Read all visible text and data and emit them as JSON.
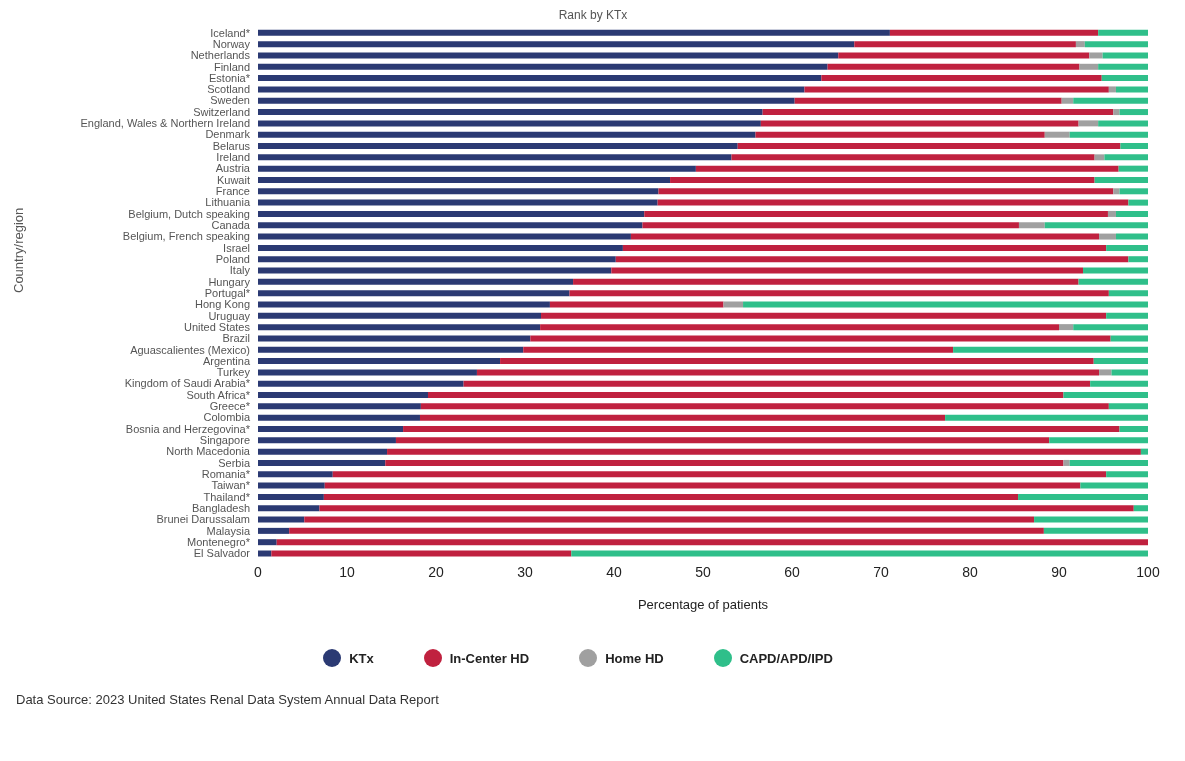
{
  "chart_data": {
    "type": "bar",
    "orientation": "horizontal",
    "stacked": true,
    "title": "Rank by KTx",
    "xlabel": "Percentage of patients",
    "ylabel": "Country/region",
    "legend": "bottom",
    "xlim": [
      0,
      100
    ],
    "xticks": [
      0,
      10,
      20,
      30,
      40,
      50,
      60,
      70,
      80,
      90,
      100
    ],
    "categories": [
      "Iceland*",
      "Norway",
      "Netherlands",
      "Finland",
      "Estonia*",
      "Scotland",
      "Sweden",
      "Switzerland",
      "England, Wales & Northern Ireland",
      "Denmark",
      "Belarus",
      "Ireland",
      "Austria",
      "Kuwait",
      "France",
      "Lithuania",
      "Belgium, Dutch speaking",
      "Canada",
      "Belgium, French speaking",
      "Israel",
      "Poland",
      "Italy",
      "Hungary",
      "Portugal*",
      "Hong Kong",
      "Uruguay",
      "United States",
      "Brazil",
      "Aguascalientes (Mexico)",
      "Argentina",
      "Turkey",
      "Kingdom of Saudi Arabia*",
      "South Africa*",
      "Greece*",
      "Colombia",
      "Bosnia and Herzegovina*",
      "Singapore",
      "North Macedonia",
      "Serbia",
      "Romania*",
      "Taiwan*",
      "Thailand*",
      "Bangladesh",
      "Brunei Darussalam",
      "Malaysia",
      "Montenegro*",
      "El Salvador"
    ],
    "series": [
      {
        "name": "KTx",
        "color": "#2b3a73",
        "values": [
          71,
          67,
          65.2,
          64,
          63.3,
          61.4,
          60.3,
          56.7,
          56.5,
          55.9,
          53.9,
          53.2,
          49.2,
          46.3,
          45,
          44.9,
          43.4,
          43.2,
          41.9,
          41,
          40.2,
          39.7,
          35.4,
          35,
          32.8,
          31.8,
          31.7,
          30.6,
          29.8,
          27.2,
          24.6,
          23.1,
          19.1,
          18.3,
          18.2,
          16.3,
          15.5,
          14.5,
          14.3,
          8.4,
          7.5,
          7.4,
          6.9,
          5.2,
          3.5,
          2.1,
          1.5
        ]
      },
      {
        "name": "In-Center HD",
        "color": "#c0213f",
        "values": [
          23.4,
          24.9,
          28.2,
          28.3,
          31.5,
          34.2,
          30,
          39.4,
          35.7,
          32.5,
          43,
          40.8,
          47.5,
          47.7,
          51.1,
          52.9,
          52.1,
          42.3,
          52.6,
          54.3,
          57.6,
          53,
          56.8,
          60.6,
          19.5,
          63.5,
          58.3,
          65.2,
          48.3,
          66.7,
          69.9,
          70.4,
          71.4,
          77.3,
          59,
          80.5,
          73.4,
          84.7,
          76.2,
          86.9,
          84.9,
          78,
          91.5,
          82,
          84.8,
          97.9,
          33.7
        ]
      },
      {
        "name": "Home HD",
        "color": "#a0a0a0",
        "values": [
          0,
          1,
          1.5,
          2.1,
          0,
          0.8,
          1.3,
          0.7,
          2.2,
          2.8,
          0,
          1.1,
          0,
          0,
          0.7,
          0,
          0.9,
          2.9,
          1.9,
          0,
          0,
          0,
          0,
          0,
          2.2,
          0,
          1.6,
          0,
          0,
          0,
          1.4,
          0,
          0,
          0,
          0,
          0,
          0,
          0,
          0.7,
          0,
          0,
          0,
          0,
          0,
          0,
          0,
          0
        ]
      },
      {
        "name": "CAPD/APD/IPD",
        "color": "#2fbf8a",
        "values": [
          5.6,
          7.1,
          5.1,
          5.6,
          5.2,
          3.6,
          8.4,
          3.2,
          5.6,
          8.8,
          3.1,
          4.9,
          3.3,
          6,
          3.2,
          2.2,
          3.6,
          11.6,
          3.6,
          4.7,
          2.2,
          7.3,
          7.8,
          4.4,
          45.5,
          4.7,
          8.4,
          4.2,
          21.9,
          6.1,
          4.1,
          6.5,
          9.5,
          4.4,
          22.8,
          3.2,
          11.1,
          0.8,
          8.8,
          4.7,
          7.6,
          14.6,
          1.6,
          12.8,
          11.7,
          0,
          64.8
        ]
      }
    ],
    "annotations": [
      "Data Source: 2023 United States Renal Data System Annual Data Report"
    ]
  }
}
